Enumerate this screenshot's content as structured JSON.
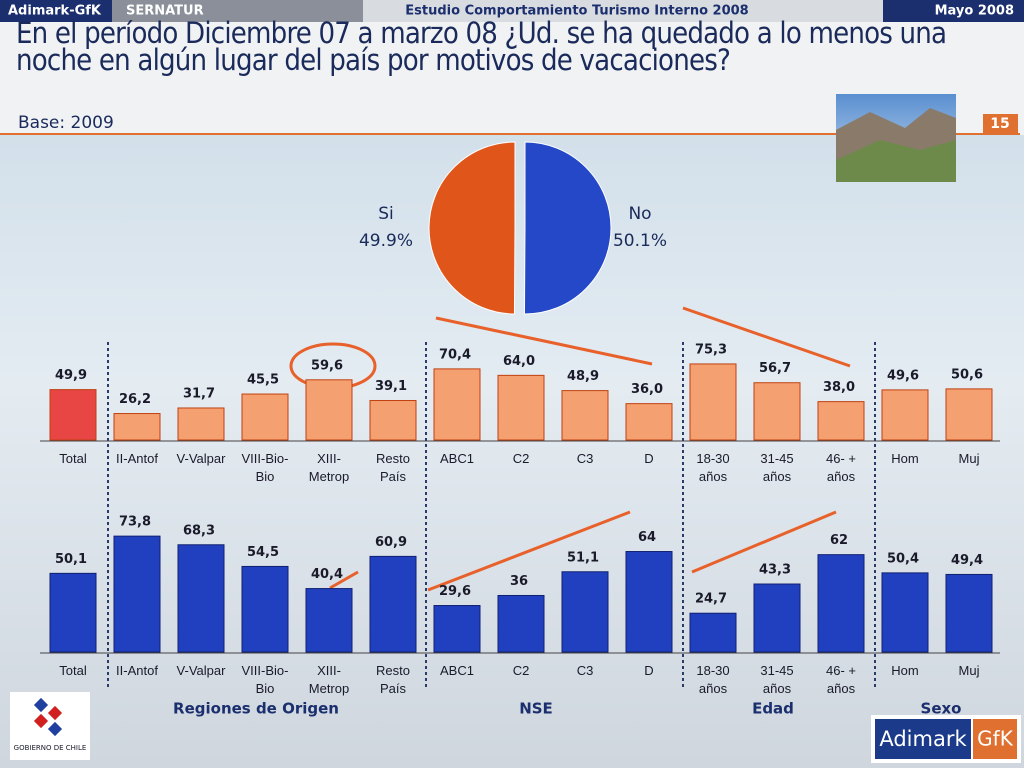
{
  "header": {
    "left": "Adimark-GfK",
    "client": "SERNATUR",
    "study": "Estudio Comportamiento Turismo Interno 2008",
    "date": "Mayo 2008",
    "title": "En el período Diciembre 07 a marzo 08 ¿Ud. se ha quedado a lo menos una noche en algún lugar del país por motivos de vacaciones?",
    "base": "Base: 2009",
    "page": "15"
  },
  "chart_data": [
    {
      "type": "pie",
      "categories": [
        "Si",
        "No"
      ],
      "values": [
        49.9,
        50.1
      ],
      "value_labels": [
        "49.9%",
        "50.1%"
      ],
      "colors": [
        "#e0561a",
        "#2448c8"
      ]
    },
    {
      "type": "bar",
      "categories": [
        "Total",
        "II-Antof",
        "V-Valpar",
        "VIII-Bio-\nBio",
        "XIII-\nMetrop",
        "Resto\nPaís",
        "ABC1",
        "C2",
        "C3",
        "D",
        "18-30\naños",
        "31-45\naños",
        "46- +\naños",
        "Hom",
        "Muj"
      ],
      "values": [
        49.9,
        26.2,
        31.7,
        45.5,
        59.6,
        39.1,
        70.4,
        64.0,
        48.9,
        36.0,
        75.3,
        56.7,
        38.0,
        49.6,
        50.6
      ],
      "value_labels": [
        "49,9",
        "26,2",
        "31,7",
        "45,5",
        "59,6",
        "39,1",
        "70,4",
        "64,0",
        "48,9",
        "36,0",
        "75,3",
        "56,7",
        "38,0",
        "49,6",
        "50,6"
      ],
      "colors": [
        "#e84545",
        "#f5a070",
        "#f5a070",
        "#f5a070",
        "#f5a070",
        "#f5a070",
        "#f5a070",
        "#f5a070",
        "#f5a070",
        "#f5a070",
        "#f5a070",
        "#f5a070",
        "#f5a070",
        "#f5a070",
        "#f5a070"
      ],
      "ylim": [
        0,
        100
      ]
    },
    {
      "type": "bar",
      "categories": [
        "Total",
        "II-Antof",
        "V-Valpar",
        "VIII-Bio-\nBio",
        "XIII-\nMetrop",
        "Resto\nPaís",
        "ABC1",
        "C2",
        "C3",
        "D",
        "18-30\naños",
        "31-45\naños",
        "46- +\naños",
        "Hom",
        "Muj"
      ],
      "values": [
        50.1,
        73.8,
        68.3,
        54.5,
        40.4,
        60.9,
        29.6,
        36,
        51.1,
        64,
        24.7,
        43.3,
        62,
        50.4,
        49.4
      ],
      "value_labels": [
        "50,1",
        "73,8",
        "68,3",
        "54,5",
        "40,4",
        "60,9",
        "29,6",
        "36",
        "51,1",
        "64",
        "24,7",
        "43,3",
        "62",
        "50,4",
        "49,4"
      ],
      "color": "#2040c0",
      "ylim": [
        0,
        100
      ]
    }
  ],
  "groups": [
    "Regiones de Origen",
    "NSE",
    "Edad",
    "Sexo"
  ],
  "footer": {
    "logo_a": "Adimark",
    "logo_b": "GfK",
    "gov": "GOBIERNO DE CHILE"
  }
}
